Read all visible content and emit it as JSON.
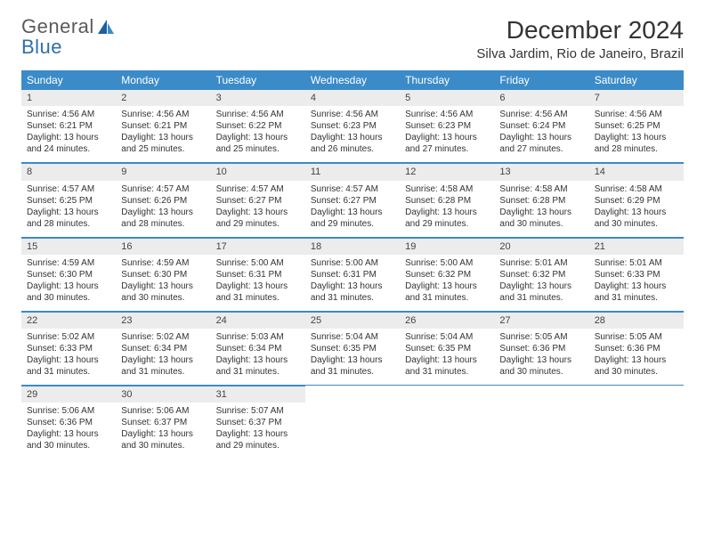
{
  "logo": {
    "line1": "General",
    "line2": "Blue"
  },
  "title": "December 2024",
  "location": "Silva Jardim, Rio de Janeiro, Brazil",
  "colors": {
    "header_bg": "#3b8bc8",
    "header_text": "#ffffff",
    "daynum_bg": "#ececec",
    "rule": "#3b8bc8",
    "text": "#333333",
    "logo_gray": "#5a5a5a",
    "logo_blue": "#2f6fa8",
    "page_bg": "#ffffff"
  },
  "font": {
    "family": "Arial",
    "body_size_pt": 7.5,
    "header_size_pt": 9,
    "title_size_pt": 21,
    "location_size_pt": 11
  },
  "day_headers": [
    "Sunday",
    "Monday",
    "Tuesday",
    "Wednesday",
    "Thursday",
    "Friday",
    "Saturday"
  ],
  "days": [
    {
      "n": 1,
      "sr": "4:56 AM",
      "ss": "6:21 PM",
      "dl": "13 hours and 24 minutes."
    },
    {
      "n": 2,
      "sr": "4:56 AM",
      "ss": "6:21 PM",
      "dl": "13 hours and 25 minutes."
    },
    {
      "n": 3,
      "sr": "4:56 AM",
      "ss": "6:22 PM",
      "dl": "13 hours and 25 minutes."
    },
    {
      "n": 4,
      "sr": "4:56 AM",
      "ss": "6:23 PM",
      "dl": "13 hours and 26 minutes."
    },
    {
      "n": 5,
      "sr": "4:56 AM",
      "ss": "6:23 PM",
      "dl": "13 hours and 27 minutes."
    },
    {
      "n": 6,
      "sr": "4:56 AM",
      "ss": "6:24 PM",
      "dl": "13 hours and 27 minutes."
    },
    {
      "n": 7,
      "sr": "4:56 AM",
      "ss": "6:25 PM",
      "dl": "13 hours and 28 minutes."
    },
    {
      "n": 8,
      "sr": "4:57 AM",
      "ss": "6:25 PM",
      "dl": "13 hours and 28 minutes."
    },
    {
      "n": 9,
      "sr": "4:57 AM",
      "ss": "6:26 PM",
      "dl": "13 hours and 28 minutes."
    },
    {
      "n": 10,
      "sr": "4:57 AM",
      "ss": "6:27 PM",
      "dl": "13 hours and 29 minutes."
    },
    {
      "n": 11,
      "sr": "4:57 AM",
      "ss": "6:27 PM",
      "dl": "13 hours and 29 minutes."
    },
    {
      "n": 12,
      "sr": "4:58 AM",
      "ss": "6:28 PM",
      "dl": "13 hours and 29 minutes."
    },
    {
      "n": 13,
      "sr": "4:58 AM",
      "ss": "6:28 PM",
      "dl": "13 hours and 30 minutes."
    },
    {
      "n": 14,
      "sr": "4:58 AM",
      "ss": "6:29 PM",
      "dl": "13 hours and 30 minutes."
    },
    {
      "n": 15,
      "sr": "4:59 AM",
      "ss": "6:30 PM",
      "dl": "13 hours and 30 minutes."
    },
    {
      "n": 16,
      "sr": "4:59 AM",
      "ss": "6:30 PM",
      "dl": "13 hours and 30 minutes."
    },
    {
      "n": 17,
      "sr": "5:00 AM",
      "ss": "6:31 PM",
      "dl": "13 hours and 31 minutes."
    },
    {
      "n": 18,
      "sr": "5:00 AM",
      "ss": "6:31 PM",
      "dl": "13 hours and 31 minutes."
    },
    {
      "n": 19,
      "sr": "5:00 AM",
      "ss": "6:32 PM",
      "dl": "13 hours and 31 minutes."
    },
    {
      "n": 20,
      "sr": "5:01 AM",
      "ss": "6:32 PM",
      "dl": "13 hours and 31 minutes."
    },
    {
      "n": 21,
      "sr": "5:01 AM",
      "ss": "6:33 PM",
      "dl": "13 hours and 31 minutes."
    },
    {
      "n": 22,
      "sr": "5:02 AM",
      "ss": "6:33 PM",
      "dl": "13 hours and 31 minutes."
    },
    {
      "n": 23,
      "sr": "5:02 AM",
      "ss": "6:34 PM",
      "dl": "13 hours and 31 minutes."
    },
    {
      "n": 24,
      "sr": "5:03 AM",
      "ss": "6:34 PM",
      "dl": "13 hours and 31 minutes."
    },
    {
      "n": 25,
      "sr": "5:04 AM",
      "ss": "6:35 PM",
      "dl": "13 hours and 31 minutes."
    },
    {
      "n": 26,
      "sr": "5:04 AM",
      "ss": "6:35 PM",
      "dl": "13 hours and 31 minutes."
    },
    {
      "n": 27,
      "sr": "5:05 AM",
      "ss": "6:36 PM",
      "dl": "13 hours and 30 minutes."
    },
    {
      "n": 28,
      "sr": "5:05 AM",
      "ss": "6:36 PM",
      "dl": "13 hours and 30 minutes."
    },
    {
      "n": 29,
      "sr": "5:06 AM",
      "ss": "6:36 PM",
      "dl": "13 hours and 30 minutes."
    },
    {
      "n": 30,
      "sr": "5:06 AM",
      "ss": "6:37 PM",
      "dl": "13 hours and 30 minutes."
    },
    {
      "n": 31,
      "sr": "5:07 AM",
      "ss": "6:37 PM",
      "dl": "13 hours and 29 minutes."
    }
  ],
  "labels": {
    "sunrise": "Sunrise:",
    "sunset": "Sunset:",
    "daylight": "Daylight:"
  },
  "grid": {
    "first_weekday_index": 0,
    "total_cells": 35
  }
}
